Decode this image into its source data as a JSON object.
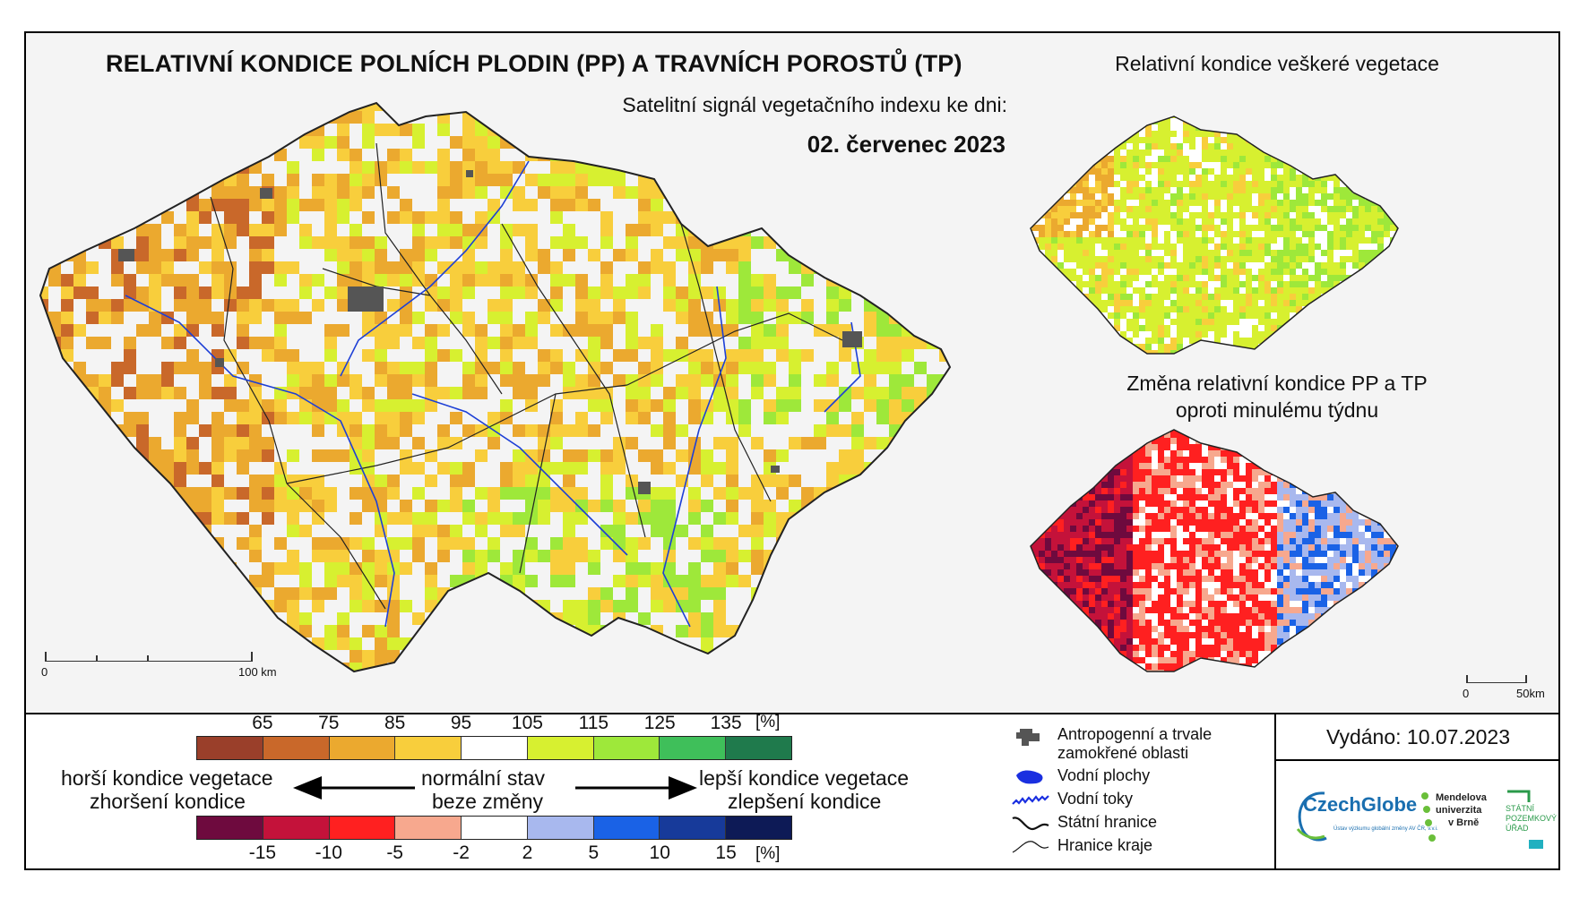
{
  "title": "RELATIVNÍ KONDICE POLNÍCH PLODIN (PP) A TRAVNÍCH POROSTŮ (TP)",
  "subtitle": "Satelitní signál vegetačního indexu ke dni:",
  "date": "02. červenec 2023",
  "inset_top_title": "Relativní kondice veškeré vegetace",
  "inset_bottom_title_line1": "Změna relativní kondice PP a TP",
  "inset_bottom_title_line2": "oproti minulému týdnu",
  "main_scale": {
    "start": "0",
    "end": "100 km"
  },
  "inset_scale": {
    "start": "0",
    "end": "50km"
  },
  "condition_legend": {
    "ticks": [
      "65",
      "75",
      "85",
      "95",
      "105",
      "115",
      "125",
      "135"
    ],
    "unit": "[%]",
    "colors": [
      "#9a3f2a",
      "#c9682a",
      "#eba92f",
      "#f8ce3c",
      "#ffffff",
      "#d7f030",
      "#9ee83a",
      "#3fbf5a",
      "#1f7a4c"
    ]
  },
  "change_legend": {
    "ticks": [
      "-15",
      "-10",
      "-5",
      "-2",
      "2",
      "5",
      "10",
      "15"
    ],
    "unit": "[%]",
    "colors": [
      "#6e0a3e",
      "#c4123a",
      "#ff2020",
      "#f7a88e",
      "#ffffff",
      "#a8b8ee",
      "#1a62e6",
      "#173a9a",
      "#0d1a56"
    ]
  },
  "left_label_1": "horší kondice vegetace",
  "left_label_2": "zhoršení kondice",
  "center_label_1": "normální stav",
  "center_label_2": "beze změny",
  "right_label_1": "lepší kondice vegetace",
  "right_label_2": "zlepšení kondice",
  "symbols": [
    {
      "label_line1": "Antropogenní a trvale",
      "label_line2": "zamokřené oblasti",
      "icon": "urban-area-icon"
    },
    {
      "label_line1": "Vodní plochy",
      "label_line2": "",
      "icon": "water-body-icon"
    },
    {
      "label_line1": "Vodní toky",
      "label_line2": "",
      "icon": "river-icon"
    },
    {
      "label_line1": "Státní hranice",
      "label_line2": "",
      "icon": "state-border-icon"
    },
    {
      "label_line1": "Hranice kraje",
      "label_line2": "",
      "icon": "region-border-icon"
    }
  ],
  "issued": "Vydáno: 10.07.2023",
  "logos": {
    "czechglobe": "CzechGlobe",
    "czechglobe_sub": "Ústav výzkumu globální změny AV ČR, v.v.i.",
    "mendel_1": "Mendelova",
    "mendel_2": "univerzita",
    "mendel_3": "v Brně",
    "spu_1": "STÁTNÍ",
    "spu_2": "POZEMKOVÝ",
    "spu_3": "ÚŘAD"
  }
}
